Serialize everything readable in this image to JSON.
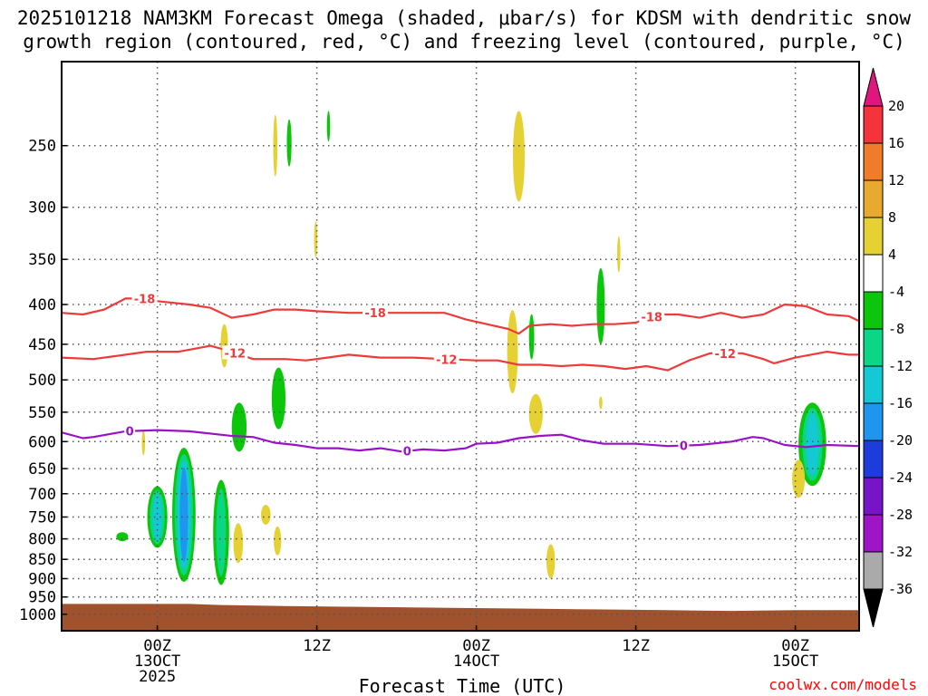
{
  "header": {
    "title_line1": "2025101218 NAM3KM Forecast Omega (shaded, μbar/s) for KDSM with dendritic snow",
    "title_line2": "growth region (contoured, red, °C) and freezing level (contoured, purple, °C)"
  },
  "footer": {
    "xlabel": "Forecast Time (UTC)",
    "credit": "coolwx.com/models"
  },
  "chart_data": {
    "type": "heatmap",
    "y_axis": {
      "scale": "log",
      "reversed": true,
      "range_hPa": [
        195,
        1050
      ],
      "ticks": [
        250,
        300,
        350,
        400,
        450,
        500,
        550,
        600,
        650,
        700,
        750,
        800,
        850,
        900,
        950,
        1000
      ]
    },
    "x_axis": {
      "range_hours": [
        -9,
        66
      ],
      "ticks": [
        {
          "h": 0,
          "line1": "00Z",
          "line2": "13OCT",
          "line3": "2025"
        },
        {
          "h": 15,
          "line1": "12Z",
          "line2": "",
          "line3": ""
        },
        {
          "h": 30,
          "line1": "00Z",
          "line2": "14OCT",
          "line3": ""
        },
        {
          "h": 45,
          "line1": "12Z",
          "line2": "",
          "line3": ""
        },
        {
          "h": 60,
          "line1": "00Z",
          "line2": "15OCT",
          "line3": ""
        }
      ]
    },
    "grid": "dotted",
    "colorbar": {
      "labels": [
        "20",
        "16",
        "12",
        "8",
        "4",
        "-4",
        "-8",
        "-12",
        "-16",
        "-20",
        "-24",
        "-28",
        "-32",
        "-36"
      ],
      "colors": [
        "#f5333d",
        "#f07b2a",
        "#e8a930",
        "#e5d133",
        "#ffffff",
        "#0cc60c",
        "#0ad686",
        "#14c8d4",
        "#1e96f0",
        "#1e3cdc",
        "#7814c8",
        "#a014c8",
        "#aaaaaa"
      ],
      "top_arrow_color": "#e0157d",
      "bottom_arrow_color": "#000000"
    },
    "contours": [
      {
        "name": "-18",
        "color": "#ee3a3a",
        "label_hours": [
          -1.2,
          20.5,
          46.5
        ],
        "points": [
          [
            -9,
            410
          ],
          [
            -7,
            412
          ],
          [
            -5,
            406
          ],
          [
            -3,
            393
          ],
          [
            -1,
            393
          ],
          [
            0,
            396
          ],
          [
            3,
            400
          ],
          [
            5,
            404
          ],
          [
            6,
            410
          ],
          [
            7,
            416
          ],
          [
            9,
            412
          ],
          [
            11,
            406
          ],
          [
            13,
            406
          ],
          [
            15,
            408
          ],
          [
            18,
            410
          ],
          [
            21,
            410
          ],
          [
            24,
            410
          ],
          [
            27,
            410
          ],
          [
            29,
            418
          ],
          [
            31,
            424
          ],
          [
            33,
            430
          ],
          [
            34,
            436
          ],
          [
            35,
            426
          ],
          [
            37,
            424
          ],
          [
            39,
            426
          ],
          [
            41,
            424
          ],
          [
            43,
            424
          ],
          [
            45,
            422
          ],
          [
            47,
            412
          ],
          [
            49,
            412
          ],
          [
            51,
            416
          ],
          [
            53,
            410
          ],
          [
            55,
            416
          ],
          [
            57,
            412
          ],
          [
            59,
            400
          ],
          [
            61,
            402
          ],
          [
            63,
            412
          ],
          [
            65,
            414
          ],
          [
            66,
            420
          ]
        ]
      },
      {
        "name": "-12",
        "color": "#ee3a3a",
        "label_hours": [
          7.3,
          27.2,
          53.4
        ],
        "points": [
          [
            -9,
            468
          ],
          [
            -6,
            470
          ],
          [
            -4,
            466
          ],
          [
            -1,
            460
          ],
          [
            2,
            460
          ],
          [
            5,
            452
          ],
          [
            7,
            460
          ],
          [
            9,
            470
          ],
          [
            12,
            470
          ],
          [
            14,
            472
          ],
          [
            16,
            468
          ],
          [
            18,
            464
          ],
          [
            21,
            468
          ],
          [
            24,
            468
          ],
          [
            27,
            470
          ],
          [
            30,
            472
          ],
          [
            32,
            472
          ],
          [
            34,
            478
          ],
          [
            36,
            478
          ],
          [
            38,
            480
          ],
          [
            40,
            478
          ],
          [
            42,
            480
          ],
          [
            44,
            484
          ],
          [
            46,
            480
          ],
          [
            48,
            486
          ],
          [
            50,
            472
          ],
          [
            52,
            462
          ],
          [
            55,
            462
          ],
          [
            57,
            470
          ],
          [
            58,
            476
          ],
          [
            60,
            468
          ],
          [
            63,
            460
          ],
          [
            65,
            464
          ],
          [
            66,
            464
          ]
        ]
      },
      {
        "name": "0",
        "color": "#9a12c8",
        "label_hours": [
          -2.6,
          23.5,
          49.5
        ],
        "points": [
          [
            -9,
            584
          ],
          [
            -7,
            594
          ],
          [
            -6,
            592
          ],
          [
            -3,
            582
          ],
          [
            0,
            580
          ],
          [
            3,
            582
          ],
          [
            7,
            590
          ],
          [
            9,
            592
          ],
          [
            11,
            602
          ],
          [
            13,
            606
          ],
          [
            15,
            612
          ],
          [
            17,
            612
          ],
          [
            19,
            616
          ],
          [
            21,
            612
          ],
          [
            23,
            618
          ],
          [
            25,
            614
          ],
          [
            27,
            616
          ],
          [
            29,
            612
          ],
          [
            30,
            604
          ],
          [
            32,
            602
          ],
          [
            34,
            594
          ],
          [
            36,
            590
          ],
          [
            38,
            588
          ],
          [
            40,
            598
          ],
          [
            42,
            604
          ],
          [
            45,
            604
          ],
          [
            48,
            608
          ],
          [
            51,
            606
          ],
          [
            54,
            600
          ],
          [
            56,
            592
          ],
          [
            57,
            594
          ],
          [
            59,
            606
          ],
          [
            61,
            610
          ],
          [
            63,
            606
          ],
          [
            66,
            608
          ]
        ]
      }
    ],
    "blobs": [
      {
        "h": 11.1,
        "p": 250,
        "rx_h": 0.2,
        "ry_px": 34,
        "colors": [
          "#e5d133"
        ]
      },
      {
        "h": 12.4,
        "p": 248,
        "rx_h": 0.22,
        "ry_px": 26,
        "colors": [
          "#0cc60c"
        ]
      },
      {
        "h": 16.1,
        "p": 236,
        "rx_h": 0.15,
        "ry_px": 17,
        "colors": [
          "#0cc60c"
        ]
      },
      {
        "h": 14.9,
        "p": 330,
        "rx_h": 0.15,
        "ry_px": 20,
        "colors": [
          "#e5d133"
        ]
      },
      {
        "h": 34.0,
        "p": 258,
        "rx_h": 0.55,
        "ry_px": 50,
        "colors": [
          "#e5d133"
        ]
      },
      {
        "h": 43.4,
        "p": 345,
        "rx_h": 0.15,
        "ry_px": 20,
        "colors": [
          "#e5d133"
        ]
      },
      {
        "h": 41.7,
        "p": 402,
        "rx_h": 0.38,
        "ry_px": 42,
        "colors": [
          "#0cc60c"
        ]
      },
      {
        "h": 6.3,
        "p": 452,
        "rx_h": 0.35,
        "ry_px": 24,
        "colors": [
          "#e5d133"
        ]
      },
      {
        "h": 33.4,
        "p": 460,
        "rx_h": 0.5,
        "ry_px": 46,
        "colors": [
          "#e5d133"
        ]
      },
      {
        "h": 35.2,
        "p": 440,
        "rx_h": 0.25,
        "ry_px": 25,
        "colors": [
          "#0cc60c"
        ]
      },
      {
        "h": 35.6,
        "p": 553,
        "rx_h": 0.65,
        "ry_px": 22,
        "colors": [
          "#e5d133"
        ]
      },
      {
        "h": 41.7,
        "p": 535,
        "rx_h": 0.15,
        "ry_px": 7,
        "colors": [
          "#e5d133"
        ]
      },
      {
        "h": 11.4,
        "p": 528,
        "rx_h": 0.65,
        "ry_px": 34,
        "colors": [
          "#0cc60c"
        ]
      },
      {
        "h": 7.7,
        "p": 575,
        "rx_h": 0.7,
        "ry_px": 27,
        "colors": [
          "#0cc60c"
        ]
      },
      {
        "h": -1.3,
        "p": 602,
        "rx_h": 0.15,
        "ry_px": 14,
        "colors": [
          "#e5d133"
        ]
      },
      {
        "h": 61.6,
        "p": 605,
        "rx_h": 1.3,
        "ry_px": 46,
        "colors": [
          "#0cc60c",
          "#0ad686",
          "#14c8d4"
        ]
      },
      {
        "h": 60.3,
        "p": 670,
        "rx_h": 0.6,
        "ry_px": 21,
        "colors": [
          "#e5d133"
        ]
      },
      {
        "h": 0.0,
        "p": 750,
        "rx_h": 0.95,
        "ry_px": 34,
        "colors": [
          "#0cc60c",
          "#0ad686",
          "#14c8d4"
        ]
      },
      {
        "h": 2.5,
        "p": 745,
        "rx_h": 1.1,
        "ry_px": 74,
        "colors": [
          "#0cc60c",
          "#0ad686",
          "#14c8d4",
          "#1e96f0"
        ]
      },
      {
        "h": 6.0,
        "p": 785,
        "rx_h": 0.75,
        "ry_px": 58,
        "colors": [
          "#0cc60c",
          "#0ad686"
        ]
      },
      {
        "h": 7.6,
        "p": 810,
        "rx_h": 0.45,
        "ry_px": 22,
        "colors": [
          "#e5d133"
        ]
      },
      {
        "h": 10.2,
        "p": 745,
        "rx_h": 0.45,
        "ry_px": 11,
        "colors": [
          "#e5d133"
        ]
      },
      {
        "h": 11.3,
        "p": 805,
        "rx_h": 0.35,
        "ry_px": 16,
        "colors": [
          "#e5d133"
        ]
      },
      {
        "h": -3.3,
        "p": 795,
        "rx_h": 0.55,
        "ry_px": 5,
        "colors": [
          "#0cc60c"
        ]
      },
      {
        "h": 37.0,
        "p": 855,
        "rx_h": 0.4,
        "ry_px": 19,
        "colors": [
          "#e5d133"
        ]
      }
    ],
    "terrain": {
      "color": "#a0522d",
      "surface": [
        [
          -9,
          970
        ],
        [
          3,
          970
        ],
        [
          6,
          973
        ],
        [
          12,
          976
        ],
        [
          18,
          978
        ],
        [
          24,
          980
        ],
        [
          30,
          982
        ],
        [
          36,
          984
        ],
        [
          42,
          986
        ],
        [
          48,
          988
        ],
        [
          54,
          990
        ],
        [
          60,
          988
        ],
        [
          66,
          988
        ]
      ]
    }
  }
}
